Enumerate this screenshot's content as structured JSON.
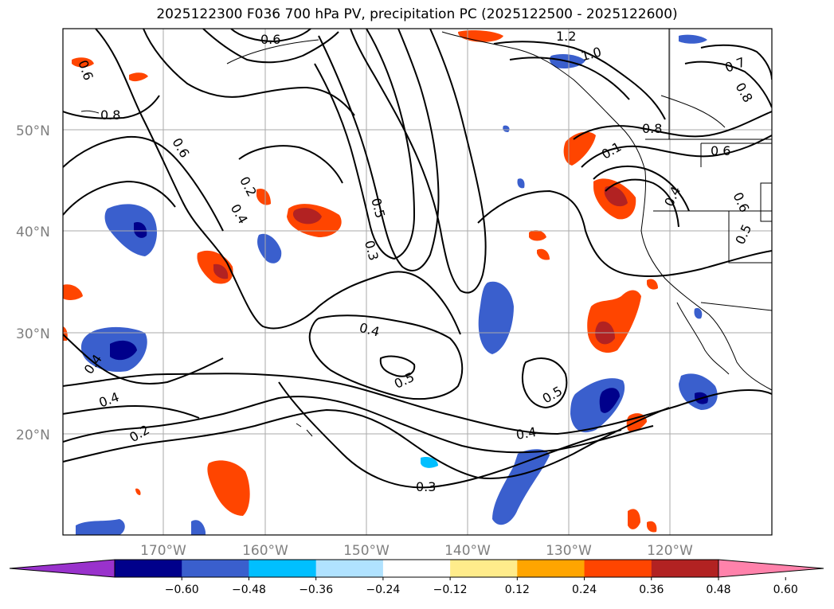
{
  "title": "2025122300 F036 700 hPa PV, precipitation PC (2025122500 - 2025122600)",
  "lat_labels": [
    "50°N",
    "40°N",
    "30°N",
    "20°N"
  ],
  "lon_labels": [
    "170°W",
    "160°W",
    "150°W",
    "140°W",
    "130°W",
    "120°W"
  ],
  "contour_labels": [
    "0.6",
    "1.2",
    "1.0",
    "0.7",
    "0.6",
    "0.8",
    "0.8",
    "0.6",
    "0.2",
    "0.4",
    "0.5",
    "0.3",
    "0.8",
    "0.6",
    "0.1",
    "0.4",
    "0.6",
    "0.5",
    "0.4",
    "0.5",
    "0.5",
    "0.4",
    "0.3",
    "0.4",
    "0.4",
    "0.2"
  ],
  "colorbar": {
    "tick_labels": [
      "−0.60",
      "−0.48",
      "−0.36",
      "−0.24",
      "−0.12",
      "0.12",
      "0.24",
      "0.36",
      "0.48",
      "0.60"
    ],
    "colors": [
      "#9932cc",
      "#00008b",
      "#3a5fcd",
      "#00bfff",
      "#b0e2ff",
      "#ffffff",
      "#ffec8b",
      "#ffa500",
      "#ff4500",
      "#b22222",
      "#ff82ab"
    ]
  }
}
